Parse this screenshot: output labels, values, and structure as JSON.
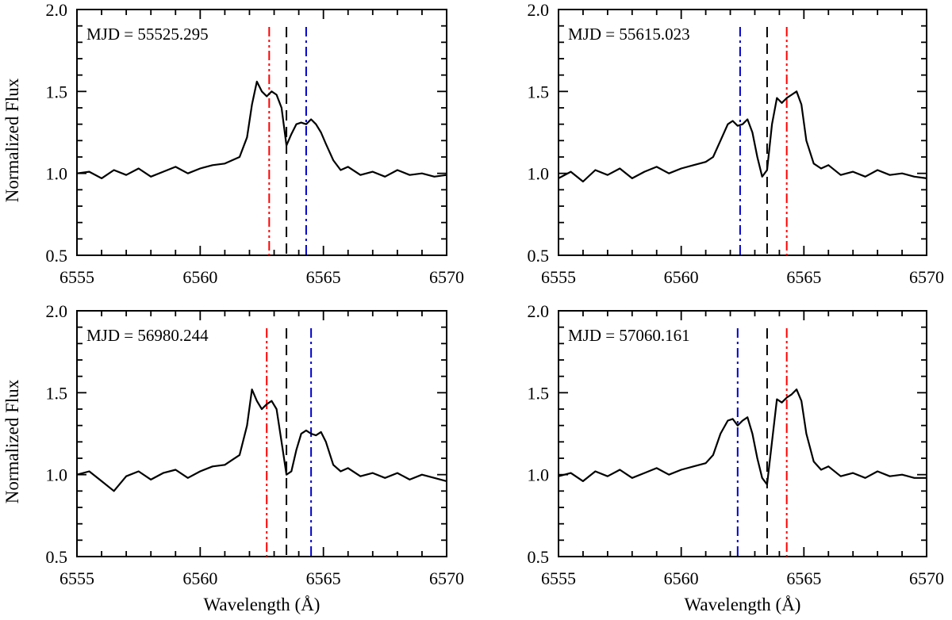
{
  "chart_data": [
    {
      "type": "line",
      "panel": "top-left",
      "annotation": "MJD = 55525.295",
      "xlabel": "",
      "ylabel": "Normalized Flux",
      "xlim": [
        6555,
        6570
      ],
      "ylim": [
        0.5,
        2.0
      ],
      "x_ticks": [
        "6555",
        "6560",
        "6565",
        "6570"
      ],
      "y_ticks": [
        "0.5",
        "1.0",
        "1.5",
        "2.0"
      ],
      "series": [
        {
          "name": "spectrum",
          "x": [
            6555.0,
            6555.5,
            6556.0,
            6556.5,
            6557.0,
            6557.5,
            6558.0,
            6558.5,
            6559.0,
            6559.5,
            6560.0,
            6560.5,
            6561.0,
            6561.3,
            6561.6,
            6561.9,
            6562.1,
            6562.3,
            6562.5,
            6562.7,
            6562.9,
            6563.1,
            6563.3,
            6563.5,
            6563.7,
            6563.9,
            6564.1,
            6564.3,
            6564.5,
            6564.7,
            6564.9,
            6565.1,
            6565.4,
            6565.7,
            6566.0,
            6566.5,
            6567.0,
            6567.5,
            6568.0,
            6568.5,
            6569.0,
            6569.5,
            6570.0
          ],
          "y": [
            1.0,
            1.01,
            0.97,
            1.02,
            0.99,
            1.03,
            0.98,
            1.01,
            1.04,
            1.0,
            1.03,
            1.05,
            1.06,
            1.08,
            1.1,
            1.22,
            1.42,
            1.56,
            1.5,
            1.47,
            1.5,
            1.48,
            1.4,
            1.17,
            1.24,
            1.3,
            1.31,
            1.3,
            1.33,
            1.3,
            1.25,
            1.18,
            1.08,
            1.02,
            1.04,
            0.99,
            1.01,
            0.98,
            1.02,
            0.99,
            1.0,
            0.98,
            0.99
          ]
        }
      ],
      "vertical_lines": [
        {
          "x": 6562.8,
          "color": "#ff0000",
          "style": "dash-dot-dot"
        },
        {
          "x": 6563.5,
          "color": "#000000",
          "style": "dashed"
        },
        {
          "x": 6564.3,
          "color": "#0000cc",
          "style": "dash-dot"
        }
      ]
    },
    {
      "type": "line",
      "panel": "top-right",
      "annotation": "MJD = 55615.023",
      "xlabel": "",
      "ylabel": "",
      "xlim": [
        6555,
        6570
      ],
      "ylim": [
        0.5,
        2.0
      ],
      "x_ticks": [
        "6555",
        "6560",
        "6565",
        "6570"
      ],
      "y_ticks": [
        "0.5",
        "1.0",
        "1.5",
        "2.0"
      ],
      "series": [
        {
          "name": "spectrum",
          "x": [
            6555.0,
            6555.5,
            6556.0,
            6556.5,
            6557.0,
            6557.5,
            6558.0,
            6558.5,
            6559.0,
            6559.5,
            6560.0,
            6560.5,
            6561.0,
            6561.3,
            6561.6,
            6561.9,
            6562.1,
            6562.3,
            6562.5,
            6562.7,
            6562.9,
            6563.1,
            6563.3,
            6563.5,
            6563.7,
            6563.9,
            6564.1,
            6564.3,
            6564.5,
            6564.7,
            6564.9,
            6565.1,
            6565.4,
            6565.7,
            6566.0,
            6566.5,
            6567.0,
            6567.5,
            6568.0,
            6568.5,
            6569.0,
            6569.5,
            6570.0
          ],
          "y": [
            0.97,
            1.01,
            0.95,
            1.02,
            0.99,
            1.03,
            0.97,
            1.01,
            1.04,
            1.0,
            1.03,
            1.05,
            1.07,
            1.1,
            1.2,
            1.3,
            1.32,
            1.29,
            1.3,
            1.33,
            1.25,
            1.1,
            0.98,
            1.02,
            1.3,
            1.46,
            1.43,
            1.46,
            1.48,
            1.5,
            1.42,
            1.2,
            1.06,
            1.03,
            1.05,
            0.99,
            1.01,
            0.98,
            1.02,
            0.99,
            1.0,
            0.98,
            0.97
          ]
        }
      ],
      "vertical_lines": [
        {
          "x": 6562.4,
          "color": "#0000cc",
          "style": "dash-dot"
        },
        {
          "x": 6563.5,
          "color": "#000000",
          "style": "dashed"
        },
        {
          "x": 6564.3,
          "color": "#ff0000",
          "style": "dash-dot-dot"
        }
      ]
    },
    {
      "type": "line",
      "panel": "bottom-left",
      "annotation": "MJD = 56980.244",
      "xlabel": "Wavelength (Å)",
      "ylabel": "Normalized Flux",
      "xlim": [
        6555,
        6570
      ],
      "ylim": [
        0.5,
        2.0
      ],
      "x_ticks": [
        "6555",
        "6560",
        "6565",
        "6570"
      ],
      "y_ticks": [
        "0.5",
        "1.0",
        "1.5",
        "2.0"
      ],
      "series": [
        {
          "name": "spectrum",
          "x": [
            6555.0,
            6555.5,
            6556.0,
            6556.5,
            6557.0,
            6557.5,
            6558.0,
            6558.5,
            6559.0,
            6559.5,
            6560.0,
            6560.5,
            6561.0,
            6561.3,
            6561.6,
            6561.9,
            6562.1,
            6562.3,
            6562.5,
            6562.7,
            6562.9,
            6563.1,
            6563.3,
            6563.5,
            6563.7,
            6563.9,
            6564.1,
            6564.3,
            6564.5,
            6564.7,
            6564.9,
            6565.1,
            6565.4,
            6565.7,
            6566.0,
            6566.5,
            6567.0,
            6567.5,
            6568.0,
            6568.5,
            6569.0,
            6569.5,
            6570.0
          ],
          "y": [
            1.0,
            1.02,
            0.96,
            0.9,
            0.99,
            1.02,
            0.97,
            1.01,
            1.03,
            0.98,
            1.02,
            1.05,
            1.06,
            1.09,
            1.12,
            1.3,
            1.52,
            1.45,
            1.4,
            1.43,
            1.45,
            1.4,
            1.2,
            1.0,
            1.02,
            1.15,
            1.25,
            1.27,
            1.25,
            1.24,
            1.26,
            1.2,
            1.06,
            1.02,
            1.04,
            0.99,
            1.01,
            0.98,
            1.01,
            0.97,
            1.0,
            0.98,
            0.96
          ]
        }
      ],
      "vertical_lines": [
        {
          "x": 6562.7,
          "color": "#ff0000",
          "style": "dash-dot-dot"
        },
        {
          "x": 6563.5,
          "color": "#000000",
          "style": "dashed"
        },
        {
          "x": 6564.5,
          "color": "#0000cc",
          "style": "dash-dot"
        }
      ]
    },
    {
      "type": "line",
      "panel": "bottom-right",
      "annotation": "MJD = 57060.161",
      "xlabel": "Wavelength (Å)",
      "ylabel": "",
      "xlim": [
        6555,
        6570
      ],
      "ylim": [
        0.5,
        2.0
      ],
      "x_ticks": [
        "6555",
        "6560",
        "6565",
        "6570"
      ],
      "y_ticks": [
        "0.5",
        "1.0",
        "1.5",
        "2.0"
      ],
      "series": [
        {
          "name": "spectrum",
          "x": [
            6555.0,
            6555.5,
            6556.0,
            6556.5,
            6557.0,
            6557.5,
            6558.0,
            6558.5,
            6559.0,
            6559.5,
            6560.0,
            6560.5,
            6561.0,
            6561.3,
            6561.6,
            6561.9,
            6562.1,
            6562.3,
            6562.5,
            6562.7,
            6562.9,
            6563.1,
            6563.3,
            6563.5,
            6563.7,
            6563.9,
            6564.1,
            6564.3,
            6564.5,
            6564.7,
            6564.9,
            6565.1,
            6565.4,
            6565.7,
            6566.0,
            6566.5,
            6567.0,
            6567.5,
            6568.0,
            6568.5,
            6569.0,
            6569.5,
            6570.0
          ],
          "y": [
            0.99,
            1.01,
            0.96,
            1.02,
            0.99,
            1.03,
            0.98,
            1.01,
            1.04,
            1.0,
            1.03,
            1.05,
            1.07,
            1.12,
            1.25,
            1.33,
            1.34,
            1.3,
            1.33,
            1.35,
            1.25,
            1.1,
            0.98,
            0.94,
            1.2,
            1.46,
            1.44,
            1.47,
            1.49,
            1.52,
            1.45,
            1.25,
            1.08,
            1.03,
            1.05,
            0.99,
            1.01,
            0.98,
            1.02,
            0.99,
            1.0,
            0.98,
            0.98
          ]
        }
      ],
      "vertical_lines": [
        {
          "x": 6562.3,
          "color": "#0000cc",
          "style": "dash-dot"
        },
        {
          "x": 6563.5,
          "color": "#000000",
          "style": "dashed"
        },
        {
          "x": 6564.3,
          "color": "#ff0000",
          "style": "dash-dot-dot"
        }
      ]
    }
  ]
}
